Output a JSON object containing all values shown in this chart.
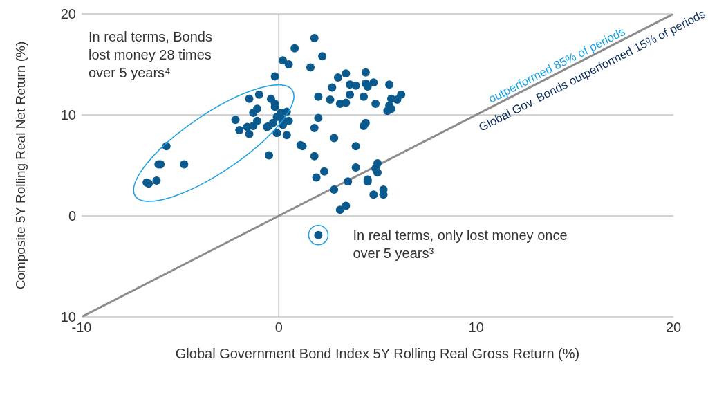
{
  "chart_data": {
    "type": "scatter",
    "xlabel": "Global Government Bond Index 5Y Rolling Real Gross Return (%)",
    "ylabel": "Composite 5Y Rolling Real Net Return (%)",
    "xlim": [
      -10,
      20
    ],
    "xticks": [
      -10,
      0,
      10,
      20
    ],
    "ylim": [
      -10,
      20
    ],
    "yticks": [
      {
        "value": -10,
        "label": "10"
      },
      0,
      10,
      20
    ],
    "grid": "y",
    "marker": "circle",
    "ref_lines": [
      {
        "axis": "x",
        "value": 0,
        "color": "#a6a6a6"
      }
    ],
    "annotations": [
      "In real terms, Bonds lost money 28 times over 5 years⁴",
      "In real terms, only lost money once over 5 years³",
      "outperformed 85% of periods",
      "Global Gov. Bonds outperformed 15% of periods"
    ],
    "series": [
      {
        "type": "scatter",
        "color": "#0b5a8e",
        "x": [
          -6.7,
          -6.6,
          -6.2,
          -6.1,
          -6.0,
          -5.7,
          -4.8,
          -2.2,
          -2.0,
          -1.6,
          -1.5,
          -1.5,
          -1.3,
          -1.3,
          -1.1,
          -1.1,
          -1.0,
          -0.6,
          -0.5,
          -0.5,
          -0.4,
          -0.3,
          -0.2,
          -0.2,
          -0.2,
          -0.1,
          -0.1,
          0.1,
          0.2,
          0.2,
          0.4,
          0.4,
          0.5,
          0.2,
          0.5,
          0.8,
          1.1,
          1.2,
          1.6,
          1.8,
          1.8,
          1.8,
          1.9,
          2.0,
          2.0,
          2.2,
          2.3,
          2.6,
          2.7,
          2.8,
          2.8,
          3.0,
          3.1,
          3.4,
          3.4,
          3.5,
          3.6,
          3.6,
          3.9,
          3.9,
          3.9,
          3.1,
          3.4,
          4.3,
          4.3,
          4.4,
          4.4,
          4.4,
          4.5,
          4.5,
          4.5,
          4.8,
          4.9,
          4.8,
          4.9,
          5.0,
          5.0,
          5.3,
          5.3,
          5.6,
          5.6,
          5.7,
          5.7,
          5.5,
          6.0,
          6.2,
          2.0
        ],
        "values": [
          3.3,
          3.2,
          3.5,
          5.1,
          5.1,
          6.9,
          5.1,
          9.5,
          8.5,
          8.8,
          8.1,
          11.6,
          10.2,
          8.9,
          9.4,
          10.6,
          12.0,
          8.8,
          8.9,
          6.0,
          11.6,
          9.2,
          11.1,
          13.8,
          10.8,
          8.2,
          9.8,
          10.2,
          9.0,
          9.5,
          8.0,
          10.3,
          9.4,
          15.4,
          15.0,
          16.6,
          7.0,
          6.9,
          14.7,
          8.7,
          17.6,
          5.9,
          3.8,
          11.8,
          9.7,
          15.8,
          4.4,
          11.5,
          12.7,
          7.7,
          2.6,
          13.7,
          11.1,
          14.1,
          11.2,
          3.4,
          12.0,
          13.0,
          6.9,
          4.8,
          12.9,
          0.6,
          1.0,
          8.9,
          11.8,
          9.2,
          14.2,
          13.1,
          3.4,
          3.6,
          12.8,
          13.2,
          11.1,
          2.1,
          4.7,
          5.2,
          4.3,
          2.6,
          2.1,
          13.0,
          10.9,
          11.6,
          10.6,
          10.4,
          11.5,
          12.0,
          -1.9
        ]
      },
      {
        "type": "line",
        "color": "#8c8c8c",
        "x": [
          -10,
          20
        ],
        "values": [
          -10,
          20
        ],
        "marker": "none"
      }
    ]
  }
}
